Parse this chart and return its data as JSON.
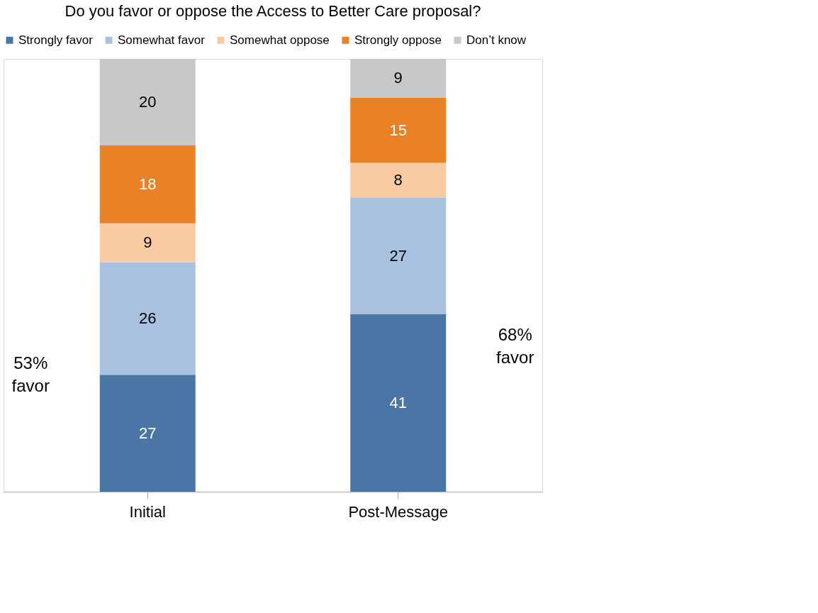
{
  "chart_data": {
    "type": "bar",
    "title": "Do you favor or oppose the Access to Better Care proposal?",
    "categories": [
      "Initial",
      "Post-Message"
    ],
    "stacked": true,
    "data_labels": true,
    "legend": "top",
    "grid": false,
    "series": [
      {
        "name": "Strongly favor",
        "color": "#4a76a6",
        "values": [
          27,
          41
        ]
      },
      {
        "name": "Somewhat favor",
        "color": "#a7c1df",
        "values": [
          26,
          27
        ]
      },
      {
        "name": "Somewhat oppose",
        "color": "#f9cba3",
        "values": [
          9,
          8
        ]
      },
      {
        "name": "Strongly oppose",
        "color": "#e98227",
        "values": [
          18,
          15
        ]
      },
      {
        "name": "Don’t know",
        "color": "#c8c8c8",
        "values": [
          20,
          9
        ]
      }
    ],
    "annotations": [
      "53% favor",
      "68% favor"
    ]
  }
}
